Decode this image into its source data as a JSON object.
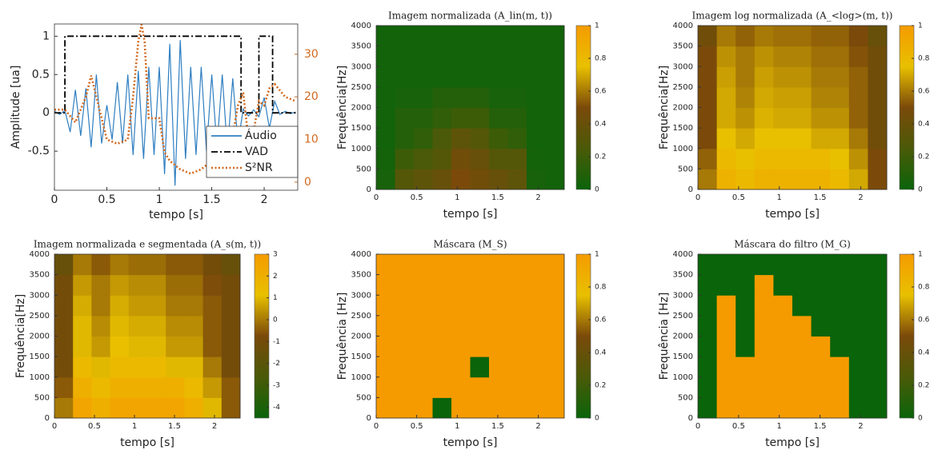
{
  "chart_data": [
    {
      "type": "line",
      "xlabel": "tempo [s]",
      "ylabel": "Amplitude [ua]",
      "xlim": [
        0,
        2.32
      ],
      "xticks": [
        0,
        0.5,
        1,
        1.5,
        2
      ],
      "ylim": [
        -1.01,
        1.16
      ],
      "yticks": [
        -0.5,
        0,
        0.5,
        1
      ],
      "y2lim": [
        -1.9,
        37.1
      ],
      "y2ticks": [
        0,
        10,
        20,
        30
      ],
      "y2color": "#d2691e",
      "legend": "lower right",
      "series": [
        {
          "name": "Áudio",
          "color": "#2f7fc1",
          "linestyle": "solid",
          "x": [
            0,
            0.05,
            0.1,
            0.15,
            0.2,
            0.25,
            0.3,
            0.35,
            0.4,
            0.45,
            0.5,
            0.55,
            0.6,
            0.65,
            0.7,
            0.75,
            0.8,
            0.85,
            0.9,
            0.95,
            1,
            1.05,
            1.1,
            1.15,
            1.2,
            1.25,
            1.3,
            1.35,
            1.4,
            1.45,
            1.5,
            1.55,
            1.6,
            1.65,
            1.7,
            1.75,
            1.8,
            1.85,
            1.9,
            1.95,
            2,
            2.05,
            2.1,
            2.15,
            2.2,
            2.25,
            2.3
          ],
          "values": [
            0.02,
            -0.02,
            0.03,
            -0.25,
            0.3,
            -0.3,
            0.32,
            -0.45,
            0.5,
            -0.4,
            0.1,
            -0.35,
            0.4,
            -0.4,
            0.5,
            -0.55,
            0.55,
            -0.6,
            0.6,
            -0.55,
            0.6,
            -0.8,
            0.9,
            -0.95,
            0.95,
            -0.6,
            0.6,
            -0.55,
            0.6,
            -0.5,
            0.5,
            -0.45,
            0.5,
            -0.5,
            0.45,
            -0.4,
            0.05,
            -0.04,
            0.04,
            -0.05,
            0.2,
            -0.2,
            0.15,
            -0.02,
            0.02,
            -0.01,
            0.01
          ]
        },
        {
          "name": "VAD",
          "color": "#000000",
          "linestyle": "dash-dot",
          "x": [
            0,
            0.1,
            0.1,
            1.78,
            1.78,
            1.95,
            1.95,
            2.08,
            2.08,
            2.3
          ],
          "values": [
            0,
            0,
            1,
            1,
            0,
            0,
            1,
            1,
            0,
            0
          ]
        },
        {
          "name": "S²NR",
          "color": "#d2691e",
          "linestyle": "dotted",
          "axis": "y2",
          "x": [
            0,
            0.1,
            0.2,
            0.3,
            0.35,
            0.4,
            0.5,
            0.6,
            0.7,
            0.75,
            0.8,
            0.83,
            0.86,
            0.9,
            1,
            1.05,
            1.1,
            1.2,
            1.3,
            1.4,
            1.5,
            1.6,
            1.7,
            1.75,
            1.8,
            1.85,
            1.9,
            1.95,
            2,
            2.05,
            2.1,
            2.2,
            2.3
          ],
          "values": [
            17,
            17,
            14,
            20,
            25,
            20,
            10,
            9,
            10,
            20,
            33,
            37,
            33,
            15,
            15,
            7,
            5,
            3,
            2,
            3,
            5,
            9,
            11,
            18,
            21,
            10,
            12,
            19,
            18,
            22,
            23,
            20,
            19
          ]
        }
      ]
    },
    {
      "type": "heatmap",
      "title": "Imagem normalizada (A_lin(m, t))",
      "xlabel": "tempo [s]",
      "ylabel": "Frequência[Hz]",
      "xlim": [
        0,
        2.32
      ],
      "xticks": [
        0,
        0.5,
        1,
        1.5,
        2
      ],
      "ylim": [
        0,
        4000
      ],
      "yticks": [
        0,
        500,
        1000,
        1500,
        2000,
        2500,
        3000,
        3500,
        4000
      ],
      "clim": [
        0,
        1
      ],
      "cticks": [
        0,
        0.2,
        0.4,
        0.6,
        0.8,
        1
      ],
      "colormap": [
        "#0a640a",
        "#4a5a08",
        "#7b4a0a",
        "#e8c000",
        "#f59b00"
      ],
      "z": [
        [
          0.05,
          0.3,
          0.35,
          0.4,
          0.5,
          0.45,
          0.4,
          0.35,
          0.05,
          0.03
        ],
        [
          0.04,
          0.2,
          0.25,
          0.3,
          0.45,
          0.4,
          0.3,
          0.3,
          0.04,
          0.03
        ],
        [
          0.03,
          0.1,
          0.15,
          0.25,
          0.35,
          0.3,
          0.2,
          0.15,
          0.03,
          0.03
        ],
        [
          0.03,
          0.1,
          0.1,
          0.15,
          0.2,
          0.2,
          0.1,
          0.1,
          0.03,
          0.03
        ],
        [
          0.03,
          0.05,
          0.05,
          0.1,
          0.1,
          0.1,
          0.05,
          0.05,
          0.03,
          0.03
        ],
        [
          0.03,
          0.03,
          0.03,
          0.03,
          0.03,
          0.03,
          0.03,
          0.03,
          0.03,
          0.03
        ],
        [
          0.03,
          0.03,
          0.03,
          0.03,
          0.03,
          0.03,
          0.03,
          0.03,
          0.03,
          0.03
        ],
        [
          0.03,
          0.03,
          0.03,
          0.03,
          0.03,
          0.03,
          0.03,
          0.03,
          0.03,
          0.03
        ]
      ]
    },
    {
      "type": "heatmap",
      "title": "Imagem log normalizada (A_<log>(m, t))",
      "xlabel": "tempo [s]",
      "ylabel": "Frequência[Hz]",
      "xlim": [
        0,
        2.32
      ],
      "xticks": [
        0,
        0.5,
        1,
        1.5,
        2
      ],
      "ylim": [
        0,
        4000
      ],
      "yticks": [
        0,
        500,
        1000,
        1500,
        2000,
        2500,
        3000,
        3500,
        4000
      ],
      "clim": [
        0,
        1
      ],
      "cticks": [
        0,
        0.2,
        0.4,
        0.6,
        0.8,
        1
      ],
      "colormap": [
        "#0a640a",
        "#4a5a08",
        "#7b4a0a",
        "#e8c000",
        "#f59b00"
      ],
      "z": [
        [
          0.6,
          0.85,
          0.8,
          0.85,
          0.85,
          0.85,
          0.85,
          0.8,
          0.7,
          0.5
        ],
        [
          0.55,
          0.8,
          0.75,
          0.8,
          0.8,
          0.8,
          0.8,
          0.75,
          0.65,
          0.5
        ],
        [
          0.5,
          0.75,
          0.7,
          0.75,
          0.75,
          0.75,
          0.7,
          0.7,
          0.6,
          0.45
        ],
        [
          0.5,
          0.7,
          0.65,
          0.72,
          0.7,
          0.7,
          0.65,
          0.65,
          0.55,
          0.45
        ],
        [
          0.5,
          0.7,
          0.62,
          0.7,
          0.68,
          0.68,
          0.62,
          0.62,
          0.55,
          0.45
        ],
        [
          0.5,
          0.68,
          0.6,
          0.68,
          0.65,
          0.65,
          0.6,
          0.6,
          0.55,
          0.45
        ],
        [
          0.5,
          0.65,
          0.6,
          0.65,
          0.62,
          0.62,
          0.58,
          0.58,
          0.52,
          0.45
        ],
        [
          0.45,
          0.6,
          0.55,
          0.6,
          0.58,
          0.58,
          0.55,
          0.55,
          0.5,
          0.4
        ]
      ]
    },
    {
      "type": "heatmap",
      "title": "Imagem normalizada e segmentada (A_s(m, t))",
      "xlabel": "tempo [s]",
      "ylabel": "Frequência[Hz]",
      "xlim": [
        0,
        2.32
      ],
      "xticks": [
        0,
        0.5,
        1,
        1.5,
        2
      ],
      "ylim": [
        0,
        4000
      ],
      "yticks": [
        0,
        500,
        1000,
        1500,
        2000,
        2500,
        3000,
        3500,
        4000
      ],
      "clim": [
        -4.5,
        3
      ],
      "cticks": [
        -4,
        -3,
        -2,
        -1,
        0,
        1,
        2,
        3
      ],
      "colormap": [
        "#0a640a",
        "#4a5a08",
        "#7b4a0a",
        "#e8c000",
        "#f59b00"
      ],
      "z": [
        [
          0,
          2.5,
          2,
          2.5,
          2.5,
          2.5,
          2.5,
          2,
          1,
          -0.5
        ],
        [
          -0.5,
          2,
          1.5,
          2,
          2,
          2,
          2,
          1.5,
          0.5,
          -0.5
        ],
        [
          -1,
          1.5,
          1,
          1.5,
          1.5,
          1.5,
          1,
          1,
          0,
          -1
        ],
        [
          -1,
          1,
          0.5,
          1.2,
          1,
          1,
          0.5,
          0.5,
          -0.5,
          -1
        ],
        [
          -1,
          1,
          0.3,
          1,
          0.8,
          0.8,
          0.3,
          0.3,
          -0.5,
          -1
        ],
        [
          -1,
          0.8,
          0,
          0.8,
          0.5,
          0.5,
          0,
          0,
          -0.5,
          -1
        ],
        [
          -1,
          0.5,
          0,
          0.5,
          0.3,
          0.3,
          -0.2,
          -0.2,
          -0.7,
          -1
        ],
        [
          -1.5,
          0,
          -0.5,
          0,
          -0.2,
          -0.2,
          -0.5,
          -0.5,
          -1,
          -1.5
        ]
      ]
    },
    {
      "type": "heatmap",
      "title": "Máscara (M_S)",
      "xlabel": "tempo [s]",
      "ylabel": "Frequência [Hz]",
      "xlim": [
        0,
        2.32
      ],
      "xticks": [
        0,
        0.5,
        1,
        1.5,
        2
      ],
      "ylim": [
        0,
        4000
      ],
      "yticks": [
        0,
        500,
        1000,
        1500,
        2000,
        2500,
        3000,
        3500,
        4000
      ],
      "clim": [
        0,
        1
      ],
      "cticks": [
        0,
        0.2,
        0.4,
        0.6,
        0.8,
        1
      ],
      "colormap": [
        "#0a640a",
        "#4a5a08",
        "#7b4a0a",
        "#e8c000",
        "#f59b00"
      ],
      "z": [
        [
          1,
          1,
          1,
          0,
          1,
          1,
          1,
          1,
          1,
          1
        ],
        [
          1,
          1,
          1,
          1,
          1,
          1,
          1,
          1,
          1,
          1
        ],
        [
          1,
          1,
          1,
          1,
          1,
          0,
          1,
          1,
          1,
          1
        ],
        [
          1,
          1,
          1,
          1,
          1,
          1,
          1,
          1,
          1,
          1
        ],
        [
          1,
          1,
          1,
          1,
          1,
          1,
          1,
          1,
          1,
          1
        ],
        [
          1,
          1,
          1,
          1,
          1,
          1,
          1,
          1,
          1,
          1
        ],
        [
          1,
          1,
          1,
          1,
          1,
          1,
          1,
          1,
          1,
          1
        ],
        [
          1,
          1,
          1,
          1,
          1,
          1,
          1,
          1,
          1,
          1
        ]
      ]
    },
    {
      "type": "heatmap",
      "title": "Máscara do filtro (M_G)",
      "xlabel": "tempo [s]",
      "ylabel": "Frequência [Hz]",
      "xlim": [
        0,
        2.32
      ],
      "xticks": [
        0,
        0.5,
        1,
        1.5,
        2
      ],
      "ylim": [
        0,
        4000
      ],
      "yticks": [
        0,
        500,
        1000,
        1500,
        2000,
        2500,
        3000,
        3500,
        4000
      ],
      "clim": [
        0,
        1
      ],
      "cticks": [
        0,
        0.2,
        0.4,
        0.6,
        0.8,
        1
      ],
      "colormap": [
        "#0a640a",
        "#4a5a08",
        "#7b4a0a",
        "#e8c000",
        "#f59b00"
      ],
      "z": [
        [
          0,
          1,
          1,
          1,
          1,
          1,
          1,
          1,
          0,
          0
        ],
        [
          0,
          1,
          1,
          1,
          1,
          1,
          1,
          1,
          0,
          0
        ],
        [
          0,
          1,
          1,
          1,
          1,
          1,
          1,
          1,
          0,
          0
        ],
        [
          0,
          1,
          0,
          1,
          1,
          1,
          1,
          0,
          0,
          0
        ],
        [
          0,
          1,
          0,
          1,
          1,
          1,
          0,
          0,
          0,
          0
        ],
        [
          0,
          1,
          0,
          1,
          1,
          0,
          0,
          0,
          0,
          0
        ],
        [
          0,
          0,
          0,
          1,
          0,
          0,
          0,
          0,
          0,
          0
        ],
        [
          0,
          0,
          0,
          0,
          0,
          0,
          0,
          0,
          0,
          0
        ]
      ]
    }
  ]
}
